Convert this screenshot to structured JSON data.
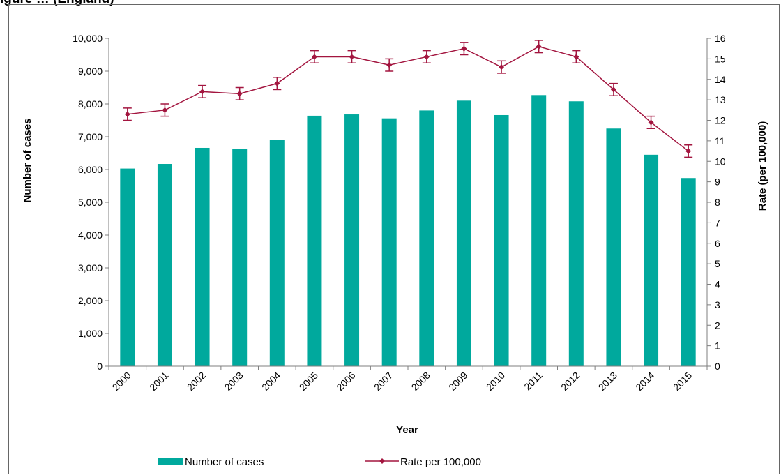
{
  "figure_title": "igure … (England)",
  "chart_data": {
    "type": "bar",
    "categories": [
      "2000",
      "2001",
      "2002",
      "2003",
      "2004",
      "2005",
      "2006",
      "2007",
      "2008",
      "2009",
      "2010",
      "2011",
      "2012",
      "2013",
      "2014",
      "2015"
    ],
    "series": [
      {
        "name": "Number of cases",
        "type": "bar",
        "axis": "left",
        "color": "#00a99d",
        "values": [
          6030,
          6170,
          6660,
          6630,
          6910,
          7640,
          7680,
          7560,
          7800,
          8100,
          7660,
          8270,
          8080,
          7250,
          6450,
          5740
        ]
      },
      {
        "name": "Rate per 100,000",
        "type": "line",
        "axis": "right",
        "color": "#a3153f",
        "values": [
          12.3,
          12.5,
          13.4,
          13.3,
          13.8,
          15.1,
          15.1,
          14.7,
          15.1,
          15.5,
          14.6,
          15.6,
          15.1,
          13.5,
          11.9,
          10.5
        ],
        "error_low": [
          12.0,
          12.2,
          13.1,
          13.0,
          13.5,
          14.8,
          14.8,
          14.4,
          14.8,
          15.2,
          14.3,
          15.3,
          14.8,
          13.2,
          11.6,
          10.2
        ],
        "error_high": [
          12.6,
          12.8,
          13.7,
          13.6,
          14.1,
          15.4,
          15.4,
          15.0,
          15.4,
          15.8,
          14.9,
          15.9,
          15.4,
          13.8,
          12.2,
          10.8
        ]
      }
    ],
    "xlabel": "Year",
    "ylabel": "Number of cases",
    "y2label": "Rate (per 100,000)",
    "ylim": [
      0,
      10000
    ],
    "y2lim": [
      0,
      16
    ],
    "yticks": [
      "0",
      "1,000",
      "2,000",
      "3,000",
      "4,000",
      "5,000",
      "6,000",
      "7,000",
      "8,000",
      "9,000",
      "10,000"
    ],
    "y2ticks": [
      "0",
      "1",
      "2",
      "3",
      "4",
      "5",
      "6",
      "7",
      "8",
      "9",
      "10",
      "11",
      "12",
      "13",
      "14",
      "15",
      "16"
    ],
    "grid": false,
    "legend": "bottom"
  }
}
